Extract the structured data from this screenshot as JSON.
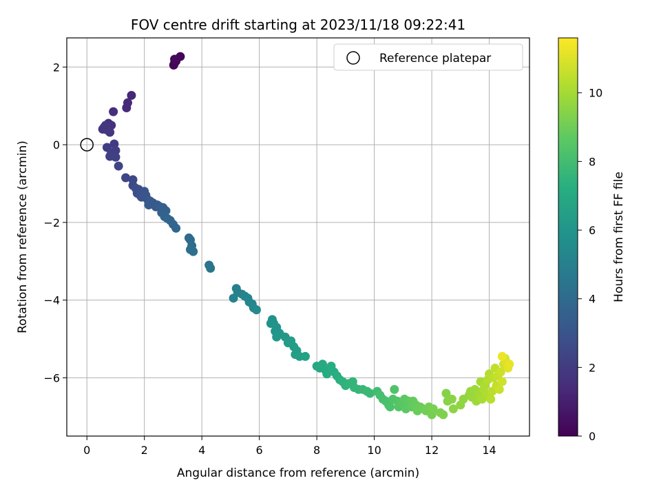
{
  "chart_data": {
    "type": "scatter",
    "title": "FOV centre drift starting at 2023/11/18 09:22:41",
    "xlabel": "Angular distance from reference (arcmin)",
    "ylabel": "Rotation from reference (arcmin)",
    "xlim": [
      -0.7,
      15.4
    ],
    "ylim": [
      -7.5,
      2.75
    ],
    "xticks": [
      0,
      2,
      4,
      6,
      8,
      10,
      12,
      14
    ],
    "yticks": [
      -6,
      -4,
      -2,
      0,
      2
    ],
    "grid": true,
    "legend": {
      "placement": "top-right",
      "entries": [
        "Reference platepar"
      ]
    },
    "reference_point": {
      "x": 0,
      "y": 0
    },
    "colorbar": {
      "label": "Hours from first FF file",
      "range": [
        0,
        11.6
      ],
      "ticks": [
        0,
        2,
        4,
        6,
        8,
        10
      ],
      "colormap": "viridis"
    },
    "points": [
      [
        3.05,
        2.1,
        0.05
      ],
      [
        3.02,
        2.05,
        0.1
      ],
      [
        3.1,
        2.15,
        0.15
      ],
      [
        3.25,
        2.27,
        0.2
      ],
      [
        3.05,
        2.2,
        0.25
      ],
      [
        1.55,
        1.27,
        1.3
      ],
      [
        1.42,
        1.08,
        1.35
      ],
      [
        1.38,
        0.95,
        1.4
      ],
      [
        0.92,
        0.85,
        1.5
      ],
      [
        0.75,
        0.55,
        1.6
      ],
      [
        0.85,
        0.5,
        1.65
      ],
      [
        0.6,
        0.45,
        1.7
      ],
      [
        0.7,
        0.38,
        1.75
      ],
      [
        0.55,
        0.4,
        1.8
      ],
      [
        0.8,
        0.32,
        1.85
      ],
      [
        0.65,
        0.5,
        1.9
      ],
      [
        0.95,
        0.02,
        2.0
      ],
      [
        0.7,
        -0.07,
        2.05
      ],
      [
        1.0,
        -0.15,
        2.1
      ],
      [
        0.85,
        -0.2,
        2.15
      ],
      [
        0.8,
        -0.3,
        2.2
      ],
      [
        1.0,
        -0.32,
        2.25
      ],
      [
        1.1,
        -0.55,
        2.3
      ],
      [
        1.35,
        -0.85,
        2.4
      ],
      [
        1.6,
        -0.9,
        2.5
      ],
      [
        1.6,
        -1.05,
        2.6
      ],
      [
        1.7,
        -1.12,
        2.7
      ],
      [
        1.8,
        -1.15,
        2.75
      ],
      [
        1.75,
        -1.25,
        2.8
      ],
      [
        1.85,
        -1.3,
        2.85
      ],
      [
        1.9,
        -1.35,
        2.9
      ],
      [
        2.0,
        -1.2,
        3.0
      ],
      [
        2.05,
        -1.3,
        3.05
      ],
      [
        2.1,
        -1.4,
        3.1
      ],
      [
        2.2,
        -1.45,
        3.15
      ],
      [
        2.3,
        -1.5,
        3.2
      ],
      [
        2.15,
        -1.55,
        3.25
      ],
      [
        2.4,
        -1.6,
        3.3
      ],
      [
        2.45,
        -1.55,
        3.35
      ],
      [
        2.55,
        -1.6,
        3.4
      ],
      [
        2.65,
        -1.62,
        3.5
      ],
      [
        2.6,
        -1.75,
        3.55
      ],
      [
        2.75,
        -1.7,
        3.6
      ],
      [
        2.7,
        -1.85,
        3.65
      ],
      [
        2.8,
        -1.9,
        3.7
      ],
      [
        2.9,
        -1.95,
        3.75
      ],
      [
        3.0,
        -2.05,
        3.8
      ],
      [
        3.1,
        -2.15,
        3.85
      ],
      [
        3.55,
        -2.4,
        4.0
      ],
      [
        3.6,
        -2.45,
        4.05
      ],
      [
        3.65,
        -2.6,
        4.1
      ],
      [
        3.6,
        -2.7,
        4.15
      ],
      [
        3.7,
        -2.75,
        4.2
      ],
      [
        4.25,
        -3.1,
        4.4
      ],
      [
        4.3,
        -3.18,
        4.45
      ],
      [
        5.2,
        -3.7,
        5.0
      ],
      [
        5.25,
        -3.8,
        5.05
      ],
      [
        5.1,
        -3.95,
        5.1
      ],
      [
        5.4,
        -3.85,
        5.15
      ],
      [
        5.5,
        -3.9,
        5.2
      ],
      [
        5.6,
        -3.95,
        5.25
      ],
      [
        5.65,
        -4.05,
        5.3
      ],
      [
        5.75,
        -4.1,
        5.35
      ],
      [
        5.8,
        -4.2,
        5.4
      ],
      [
        5.9,
        -4.25,
        5.45
      ],
      [
        6.45,
        -4.5,
        5.8
      ],
      [
        6.5,
        -4.6,
        5.85
      ],
      [
        6.4,
        -4.6,
        5.9
      ],
      [
        6.6,
        -4.7,
        5.95
      ],
      [
        6.55,
        -4.8,
        6.0
      ],
      [
        6.7,
        -4.85,
        6.05
      ],
      [
        6.6,
        -4.95,
        6.1
      ],
      [
        6.9,
        -4.95,
        6.15
      ],
      [
        7.0,
        -5.1,
        6.3
      ],
      [
        7.1,
        -5.05,
        6.35
      ],
      [
        7.2,
        -5.2,
        6.4
      ],
      [
        7.3,
        -5.3,
        6.45
      ],
      [
        7.25,
        -5.4,
        6.5
      ],
      [
        7.4,
        -5.45,
        6.55
      ],
      [
        7.6,
        -5.45,
        6.6
      ],
      [
        8.0,
        -5.7,
        6.9
      ],
      [
        8.1,
        -5.75,
        6.95
      ],
      [
        8.2,
        -5.65,
        7.0
      ],
      [
        8.3,
        -5.8,
        7.05
      ],
      [
        8.35,
        -5.9,
        7.1
      ],
      [
        8.5,
        -5.7,
        7.15
      ],
      [
        8.6,
        -5.85,
        7.2
      ],
      [
        8.7,
        -5.95,
        7.25
      ],
      [
        8.8,
        -6.05,
        7.3
      ],
      [
        8.9,
        -6.1,
        7.4
      ],
      [
        9.0,
        -6.2,
        7.45
      ],
      [
        9.1,
        -6.15,
        7.5
      ],
      [
        9.25,
        -6.1,
        7.55
      ],
      [
        9.3,
        -6.25,
        7.6
      ],
      [
        9.45,
        -6.3,
        7.65
      ],
      [
        9.6,
        -6.3,
        7.7
      ],
      [
        9.75,
        -6.35,
        7.75
      ],
      [
        9.85,
        -6.4,
        7.8
      ],
      [
        10.1,
        -6.35,
        8.0
      ],
      [
        10.2,
        -6.45,
        8.05
      ],
      [
        10.3,
        -6.55,
        8.1
      ],
      [
        10.4,
        -6.6,
        8.15
      ],
      [
        10.5,
        -6.7,
        8.2
      ],
      [
        10.55,
        -6.75,
        8.25
      ],
      [
        10.65,
        -6.55,
        8.3
      ],
      [
        10.7,
        -6.3,
        8.35
      ],
      [
        10.8,
        -6.6,
        8.4
      ],
      [
        10.85,
        -6.75,
        8.45
      ],
      [
        10.9,
        -6.65,
        8.5
      ],
      [
        11.0,
        -6.7,
        8.55
      ],
      [
        11.05,
        -6.55,
        8.6
      ],
      [
        11.1,
        -6.8,
        8.65
      ],
      [
        11.2,
        -6.6,
        8.7
      ],
      [
        11.3,
        -6.75,
        8.75
      ],
      [
        11.35,
        -6.6,
        8.8
      ],
      [
        11.45,
        -6.7,
        8.85
      ],
      [
        11.5,
        -6.85,
        8.9
      ],
      [
        11.6,
        -6.75,
        8.95
      ],
      [
        11.7,
        -6.8,
        9.0
      ],
      [
        11.8,
        -6.85,
        9.05
      ],
      [
        11.9,
        -6.75,
        9.1
      ],
      [
        12.0,
        -6.95,
        9.15
      ],
      [
        12.05,
        -6.8,
        9.2
      ],
      [
        12.3,
        -6.9,
        9.25
      ],
      [
        12.4,
        -6.95,
        9.3
      ],
      [
        12.5,
        -6.4,
        9.4
      ],
      [
        12.55,
        -6.6,
        9.45
      ],
      [
        12.7,
        -6.55,
        9.5
      ],
      [
        12.75,
        -6.8,
        9.55
      ],
      [
        13.0,
        -6.7,
        9.6
      ],
      [
        13.1,
        -6.55,
        9.65
      ],
      [
        13.3,
        -6.45,
        9.7
      ],
      [
        13.35,
        -6.35,
        9.75
      ],
      [
        13.4,
        -6.5,
        9.8
      ],
      [
        13.5,
        -6.3,
        9.85
      ],
      [
        13.55,
        -6.6,
        9.9
      ],
      [
        13.65,
        -6.45,
        9.95
      ],
      [
        13.7,
        -6.1,
        10.0
      ],
      [
        13.75,
        -6.55,
        10.05
      ],
      [
        13.8,
        -6.3,
        10.1
      ],
      [
        13.85,
        -6.2,
        10.15
      ],
      [
        13.9,
        -6.4,
        10.2
      ],
      [
        13.95,
        -6.05,
        10.25
      ],
      [
        14.0,
        -5.9,
        10.3
      ],
      [
        14.05,
        -6.55,
        10.35
      ],
      [
        14.1,
        -6.35,
        10.4
      ],
      [
        14.15,
        -6.0,
        10.45
      ],
      [
        14.2,
        -5.75,
        10.5
      ],
      [
        14.25,
        -6.2,
        10.55
      ],
      [
        14.3,
        -5.95,
        10.6
      ],
      [
        14.35,
        -6.3,
        10.65
      ],
      [
        14.4,
        -5.85,
        10.7
      ],
      [
        14.45,
        -6.1,
        10.75
      ],
      [
        14.5,
        -5.65,
        10.8
      ],
      [
        14.55,
        -5.5,
        10.9
      ],
      [
        14.6,
        -5.6,
        11.0
      ],
      [
        14.65,
        -5.75,
        11.1
      ],
      [
        14.7,
        -5.65,
        11.2
      ],
      [
        14.45,
        -5.45,
        11.3
      ]
    ]
  }
}
